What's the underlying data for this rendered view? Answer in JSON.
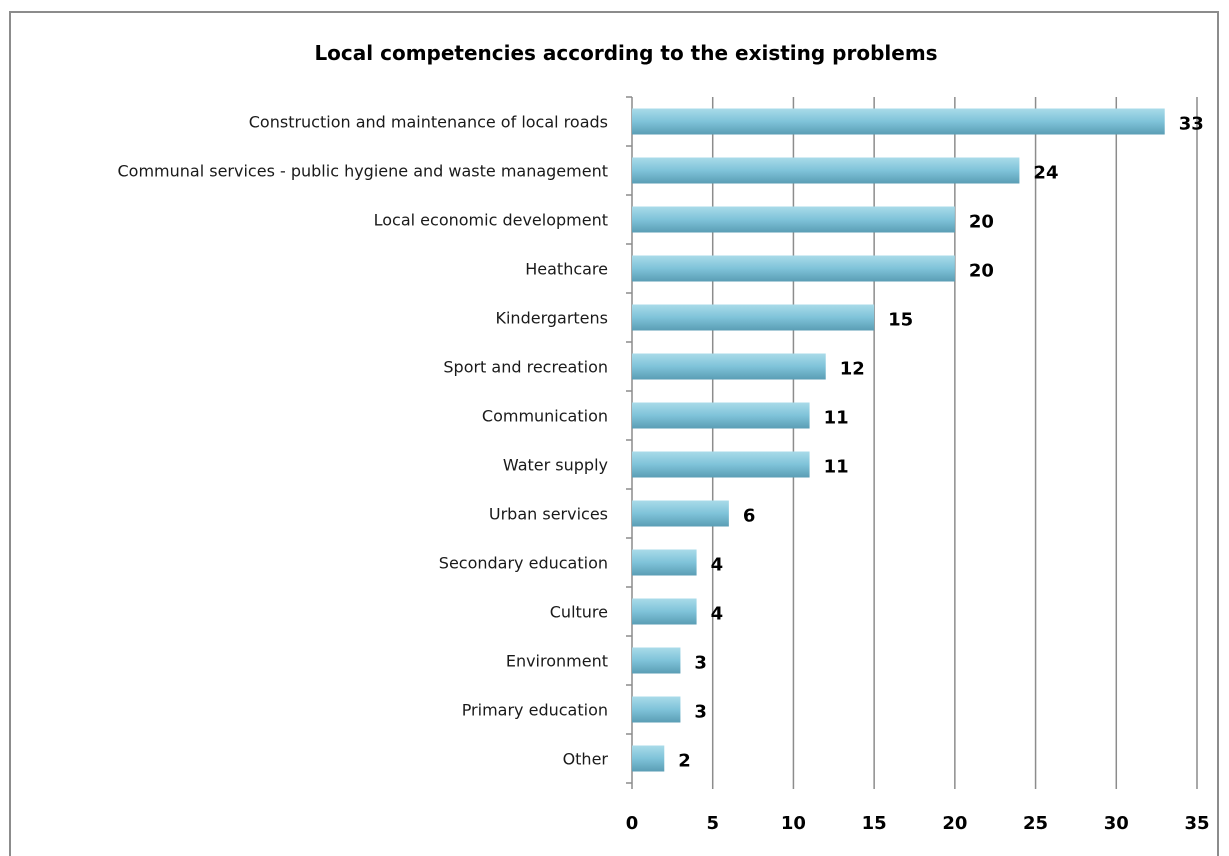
{
  "chart_data": {
    "type": "bar",
    "orientation": "horizontal",
    "title": "Local competencies according to the existing problems",
    "categories": [
      "Construction and maintenance of local roads",
      "Communal services - public hygiene and waste management",
      "Local economic development",
      "Heathcare",
      "Kindergartens",
      "Sport and recreation",
      "Communication",
      "Water supply",
      "Urban services",
      "Secondary education ",
      "Culture",
      "Environment",
      "Primary education",
      "Other"
    ],
    "values": [
      33,
      24,
      20,
      20,
      15,
      12,
      11,
      11,
      6,
      4,
      4,
      3,
      3,
      2
    ],
    "xlim": [
      0,
      35
    ],
    "xticks": [
      0,
      5,
      10,
      15,
      20,
      25,
      30,
      35
    ],
    "xlabel": "",
    "ylabel": "",
    "grid": true,
    "legend": "none",
    "colors": {
      "bar_light": "#a9dbe9",
      "bar_mid": "#7fc3d9",
      "bar_dark": "#5a9db4",
      "gridline": "#8c8c8c",
      "frame": "#8c8c8c"
    }
  }
}
